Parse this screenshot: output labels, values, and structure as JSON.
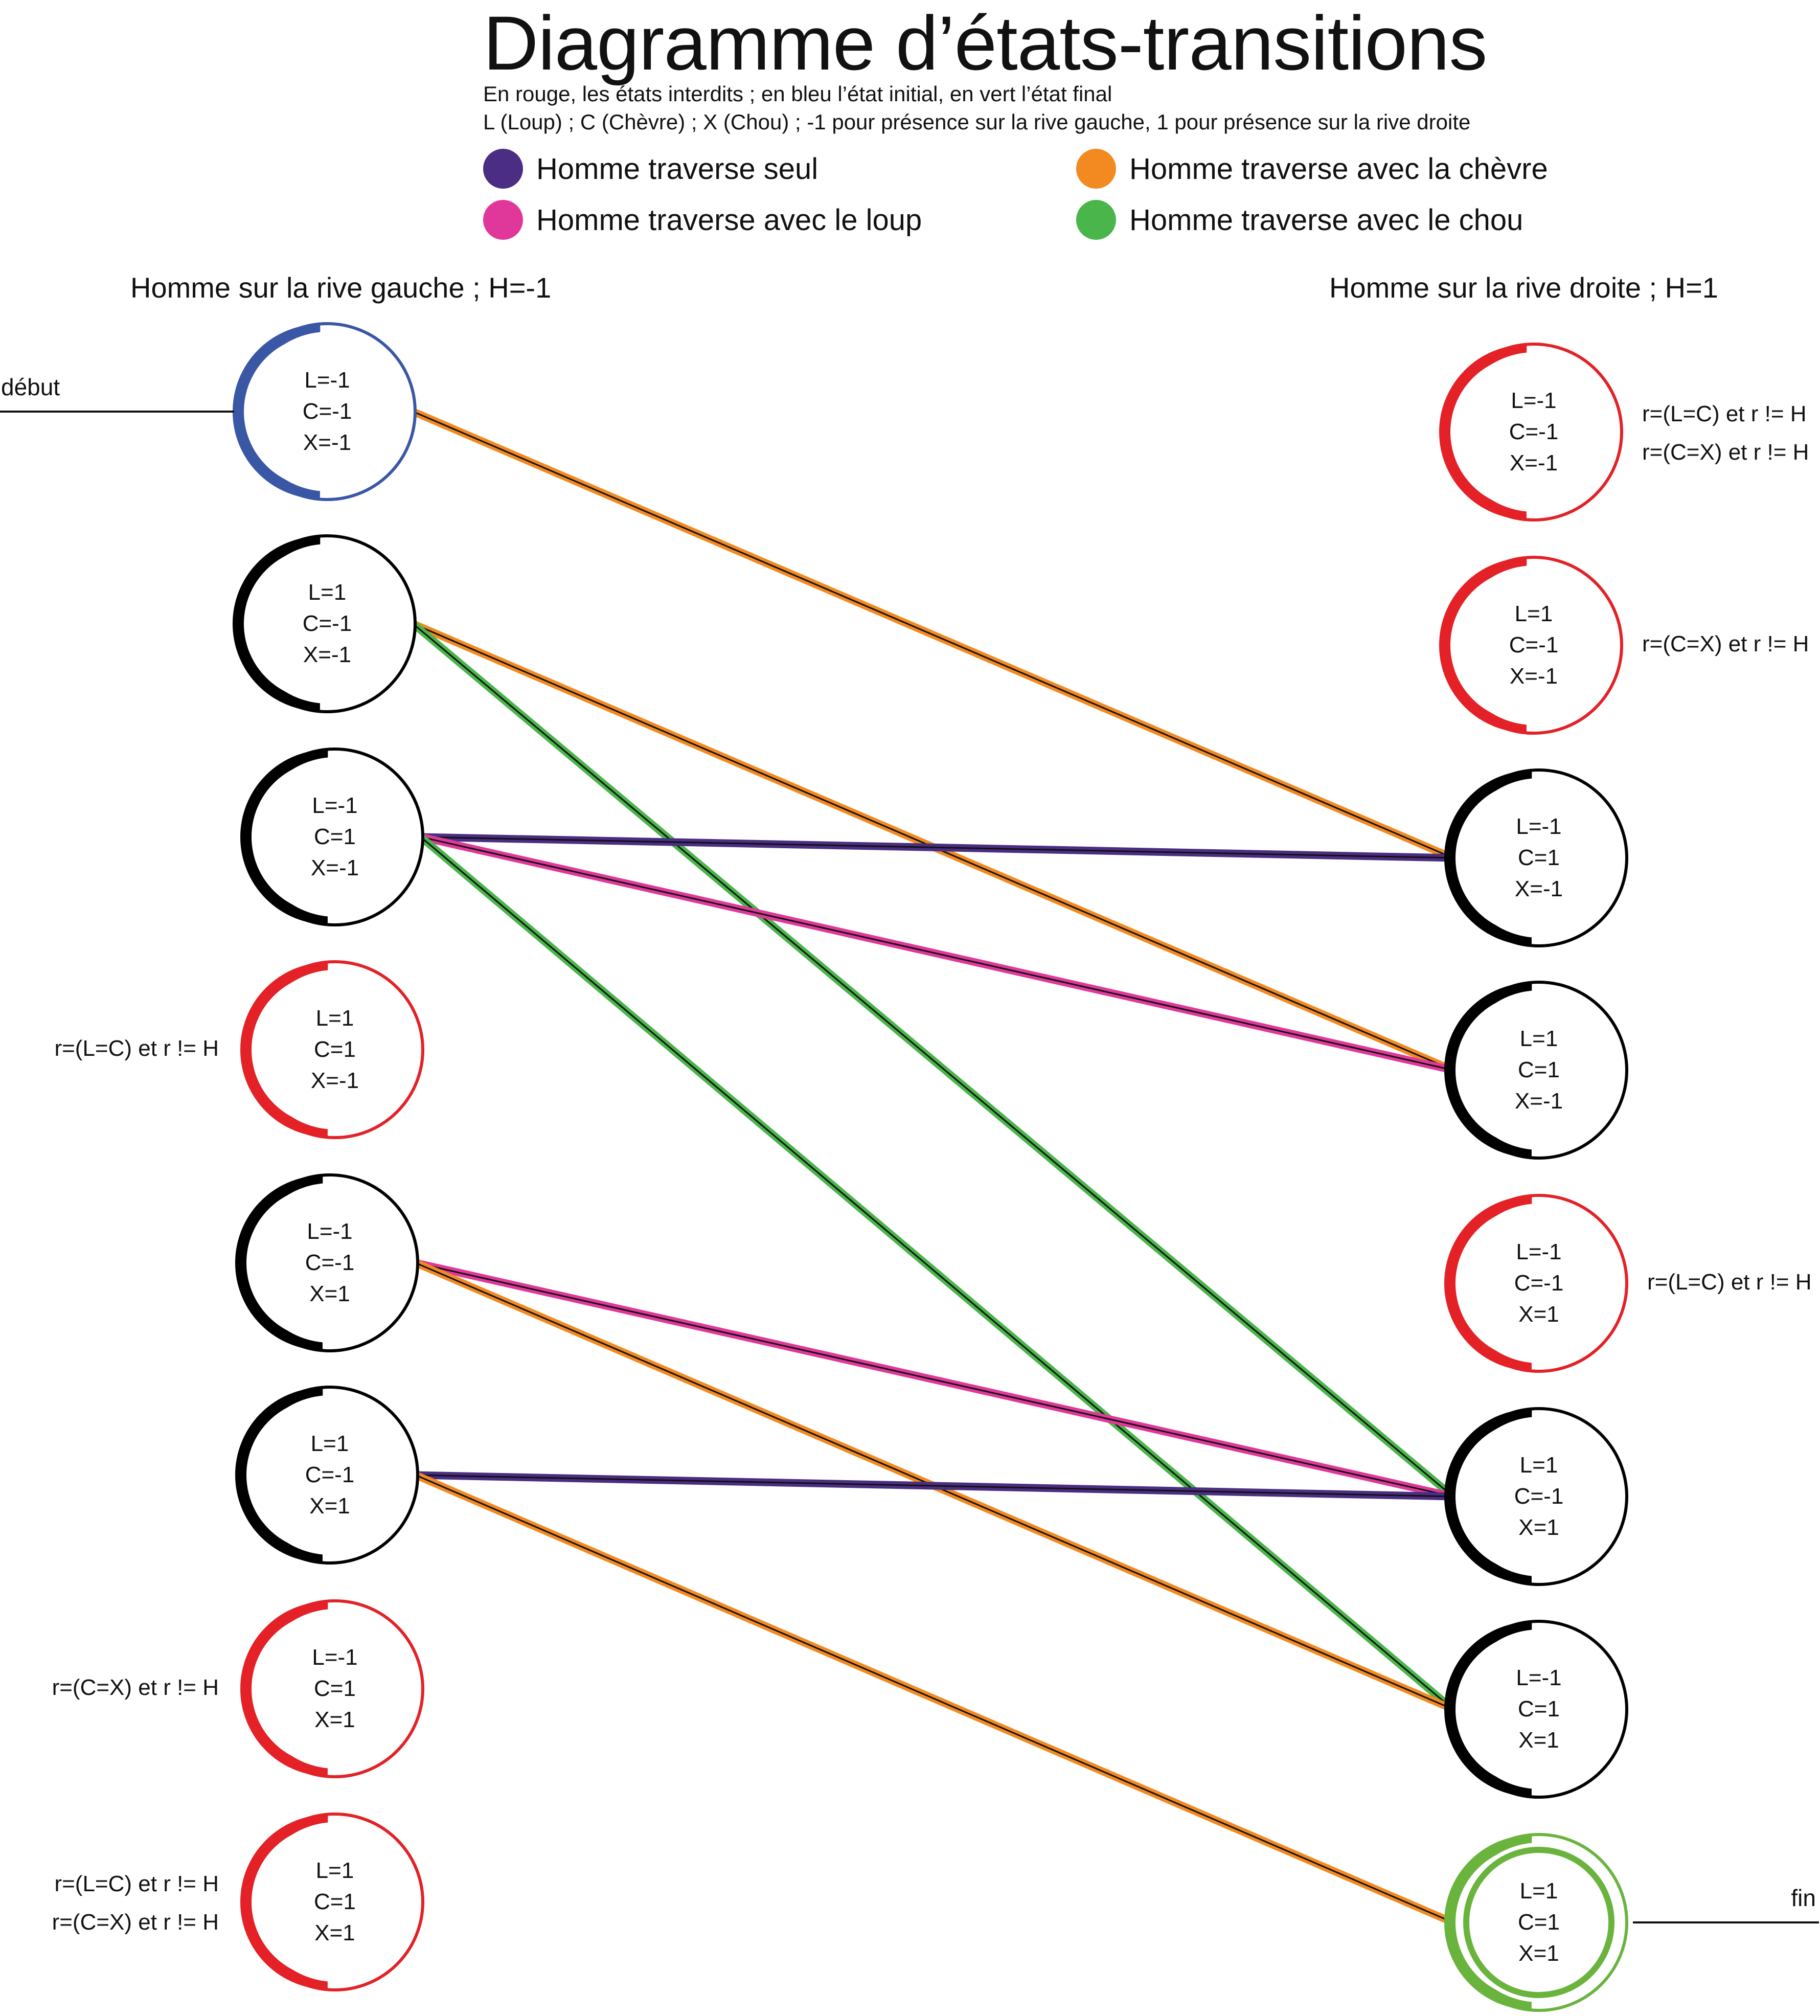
{
  "header": {
    "title": "Diagramme d’états-transitions",
    "subtitle_line1": "En rouge, les états interdits ; en bleu l’état initial, en vert l’état final",
    "subtitle_line2": "L (Loup) ; C (Chèvre) ; X (Chou) ;   -1 pour présence sur la rive gauche, 1 pour présence sur la rive droite"
  },
  "legend": [
    {
      "id": "seul",
      "label": "Homme traverse seul",
      "color": "#4b2e83"
    },
    {
      "id": "loup",
      "label": "Homme traverse avec le loup",
      "color": "#e0389a"
    },
    {
      "id": "chevre",
      "label": "Homme traverse avec la chèvre",
      "color": "#f28a21"
    },
    {
      "id": "chou",
      "label": "Homme traverse avec le chou",
      "color": "#4ab54a"
    }
  ],
  "columns": {
    "left": "Homme sur la rive gauche ; H=-1",
    "right": "Homme sur la rive droite ; H=1"
  },
  "status_colors": {
    "initial": "#3a57a5",
    "final": "#6ab43e",
    "forbidden": "#e32126",
    "normal": "#000000"
  },
  "states": {
    "left": [
      {
        "id": "L0",
        "L": "L=-1",
        "C": "C=-1",
        "X": "X=-1",
        "status": "initial",
        "notes": []
      },
      {
        "id": "L1",
        "L": "L=1",
        "C": "C=-1",
        "X": "X=-1",
        "status": "normal",
        "notes": []
      },
      {
        "id": "L2",
        "L": "L=-1",
        "C": "C=1",
        "X": "X=-1",
        "status": "normal",
        "notes": []
      },
      {
        "id": "L3",
        "L": "L=1",
        "C": "C=1",
        "X": "X=-1",
        "status": "forbidden",
        "notes": [
          "r=(L=C) et r != H"
        ]
      },
      {
        "id": "L4",
        "L": "L=-1",
        "C": "C=-1",
        "X": "X=1",
        "status": "normal",
        "notes": []
      },
      {
        "id": "L5",
        "L": "L=1",
        "C": "C=-1",
        "X": "X=1",
        "status": "normal",
        "notes": []
      },
      {
        "id": "L6",
        "L": "L=-1",
        "C": "C=1",
        "X": "X=1",
        "status": "forbidden",
        "notes": [
          "r=(C=X) et r != H"
        ]
      },
      {
        "id": "L7",
        "L": "L=1",
        "C": "C=1",
        "X": "X=1",
        "status": "forbidden",
        "notes": [
          "r=(L=C) et r != H",
          "r=(C=X) et r != H"
        ]
      }
    ],
    "right": [
      {
        "id": "R0",
        "L": "L=-1",
        "C": "C=-1",
        "X": "X=-1",
        "status": "forbidden",
        "notes": [
          "r=(L=C) et r != H",
          "r=(C=X) et r != H"
        ]
      },
      {
        "id": "R1",
        "L": "L=1",
        "C": "C=-1",
        "X": "X=-1",
        "status": "forbidden",
        "notes": [
          "r=(C=X) et r != H"
        ]
      },
      {
        "id": "R2",
        "L": "L=-1",
        "C": "C=1",
        "X": "X=-1",
        "status": "normal",
        "notes": []
      },
      {
        "id": "R3",
        "L": "L=1",
        "C": "C=1",
        "X": "X=-1",
        "status": "normal",
        "notes": []
      },
      {
        "id": "R4",
        "L": "L=-1",
        "C": "C=-1",
        "X": "X=1",
        "status": "forbidden",
        "notes": [
          "r=(L=C) et r != H"
        ]
      },
      {
        "id": "R5",
        "L": "L=1",
        "C": "C=-1",
        "X": "X=1",
        "status": "normal",
        "notes": []
      },
      {
        "id": "R6",
        "L": "L=-1",
        "C": "C=1",
        "X": "X=1",
        "status": "normal",
        "notes": []
      },
      {
        "id": "R7",
        "L": "L=1",
        "C": "C=1",
        "X": "X=1",
        "status": "final",
        "notes": []
      }
    ]
  },
  "start_label": "début",
  "end_label": "fin",
  "transitions": [
    {
      "from": "L0",
      "to": "R2",
      "type": "chevre"
    },
    {
      "from": "L1",
      "to": "R3",
      "type": "chevre"
    },
    {
      "from": "L1",
      "to": "R5",
      "type": "chou"
    },
    {
      "from": "L2",
      "to": "R2",
      "type": "seul"
    },
    {
      "from": "L2",
      "to": "R3",
      "type": "loup"
    },
    {
      "from": "L2",
      "to": "R6",
      "type": "chou"
    },
    {
      "from": "L4",
      "to": "R5",
      "type": "loup"
    },
    {
      "from": "L4",
      "to": "R6",
      "type": "chevre"
    },
    {
      "from": "L5",
      "to": "R5",
      "type": "seul"
    },
    {
      "from": "L5",
      "to": "R7",
      "type": "chevre"
    }
  ]
}
